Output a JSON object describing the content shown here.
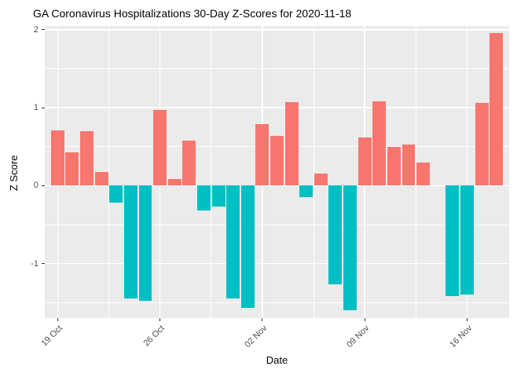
{
  "chart_data": {
    "type": "bar",
    "title": "GA Coronavirus Hospitalizations 30-Day Z-Scores for 2020-11-18",
    "xlabel": "Date",
    "ylabel": "Z Score",
    "x": [
      "2020-10-19",
      "2020-10-20",
      "2020-10-21",
      "2020-10-22",
      "2020-10-23",
      "2020-10-24",
      "2020-10-25",
      "2020-10-26",
      "2020-10-27",
      "2020-10-28",
      "2020-10-29",
      "2020-10-30",
      "2020-10-31",
      "2020-11-01",
      "2020-11-02",
      "2020-11-03",
      "2020-11-04",
      "2020-11-05",
      "2020-11-06",
      "2020-11-07",
      "2020-11-08",
      "2020-11-09",
      "2020-11-10",
      "2020-11-11",
      "2020-11-12",
      "2020-11-13",
      "2020-11-14",
      "2020-11-15",
      "2020-11-16",
      "2020-11-17",
      "2020-11-18"
    ],
    "values": [
      0.71,
      0.43,
      0.7,
      0.18,
      -0.22,
      -1.45,
      -1.48,
      0.97,
      0.08,
      0.58,
      -0.32,
      -0.27,
      -1.45,
      -1.57,
      0.79,
      0.64,
      1.07,
      -0.15,
      0.15,
      -1.27,
      -1.6,
      0.62,
      1.08,
      0.5,
      0.53,
      0.3,
      0.0,
      -1.42,
      -1.4,
      1.06,
      1.96
    ],
    "ylim": [
      -1.7,
      2.05
    ],
    "yticks": [
      -1,
      0,
      1,
      2
    ],
    "xticks": [
      {
        "index": 0,
        "label": "19 Oct"
      },
      {
        "index": 7,
        "label": "26 Oct"
      },
      {
        "index": 14,
        "label": "02 Nov"
      },
      {
        "index": 21,
        "label": "09 Nov"
      },
      {
        "index": 28,
        "label": "16 Nov"
      }
    ],
    "grid": true,
    "legend_position": "none",
    "colors": {
      "positive": "#F8766D",
      "negative": "#00BFC4",
      "panel_bg": "#EBEBEB",
      "gridline": "#FFFFFF",
      "tick_text": "#4D4D4D",
      "axis_text": "#000000",
      "background": "#FFFFFF"
    }
  }
}
